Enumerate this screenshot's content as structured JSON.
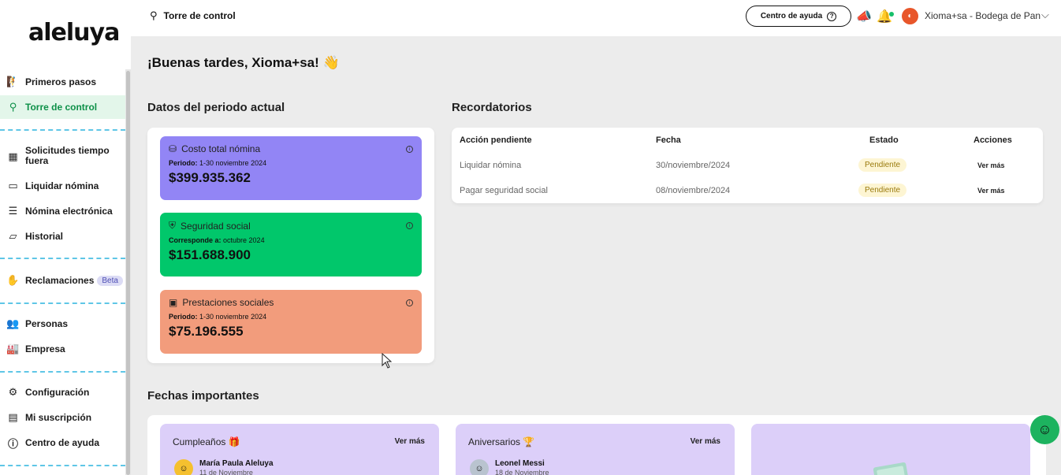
{
  "app": {
    "logo": "aleluya"
  },
  "sidebar": {
    "items": [
      {
        "label": "Primeros pasos",
        "icon": "climber-icon"
      },
      {
        "label": "Torre de control",
        "icon": "stamp-icon"
      },
      {
        "label": "Solicitudes tiempo fuera",
        "icon": "calendar-icon"
      },
      {
        "label": "Liquidar nómina",
        "icon": "wallet-icon"
      },
      {
        "label": "Nómina electrónica",
        "icon": "document-list-icon"
      },
      {
        "label": "Historial",
        "icon": "folder-open-icon"
      },
      {
        "label": "Reclamaciones",
        "icon": "hand-coin-icon",
        "badge": "Beta"
      },
      {
        "label": "Personas",
        "icon": "people-icon"
      },
      {
        "label": "Empresa",
        "icon": "factory-icon"
      },
      {
        "label": "Configuración",
        "icon": "gear-icon"
      },
      {
        "label": "Mi suscripción",
        "icon": "receipt-icon"
      },
      {
        "label": "Centro de ayuda",
        "icon": "info-icon"
      }
    ],
    "active_index": 1
  },
  "topbar": {
    "breadcrumb": "Torre de control",
    "help_label": "Centro de ayuda",
    "user_name": "Xioma+sa - Bodega de Pan"
  },
  "main": {
    "greeting": "¡Buenas tardes, Xioma+sa! 👋",
    "period_title": "Datos del periodo actual",
    "stats": [
      {
        "title": "Costo total nómina",
        "sub_label": "Periodo:",
        "sub_value": "1-30 noviembre 2024",
        "value": "$399.935.362",
        "color": "#9285f5",
        "icon": "money-hand-icon"
      },
      {
        "title": "Seguridad social",
        "sub_label": "Corresponde a:",
        "sub_value": "octubre 2024",
        "value": "$151.688.900",
        "color": "#01c76b",
        "icon": "shield-heart-icon"
      },
      {
        "title": "Prestaciones sociales",
        "sub_label": "Periodo:",
        "sub_value": "1-30 noviembre 2024",
        "value": "$75.196.555",
        "color": "#f29c7c",
        "icon": "benefits-icon"
      }
    ],
    "reminders_title": "Recordatorios",
    "reminders": {
      "headers": [
        "Acción pendiente",
        "Fecha",
        "Estado",
        "Acciones"
      ],
      "rows": [
        {
          "action": "Liquidar nómina",
          "date": "30/noviembre/2024",
          "status": "Pendiente",
          "link": "Ver más"
        },
        {
          "action": "Pagar seguridad social",
          "date": "08/noviembre/2024",
          "status": "Pendiente",
          "link": "Ver más"
        }
      ]
    },
    "dates_title": "Fechas importantes",
    "date_cards": [
      {
        "title": "Cumpleaños 🎁",
        "link": "Ver más",
        "person": "María Paula Aleluya",
        "date": "11 de Noviembre"
      },
      {
        "title": "Aniversarios 🏆",
        "link": "Ver más",
        "person": "Leonel Messi",
        "date": "18 de Noviembre"
      }
    ]
  },
  "colors": {
    "accent": "#0d9048",
    "support": "#1db35f",
    "badge_bg": "#fdf5d3"
  }
}
